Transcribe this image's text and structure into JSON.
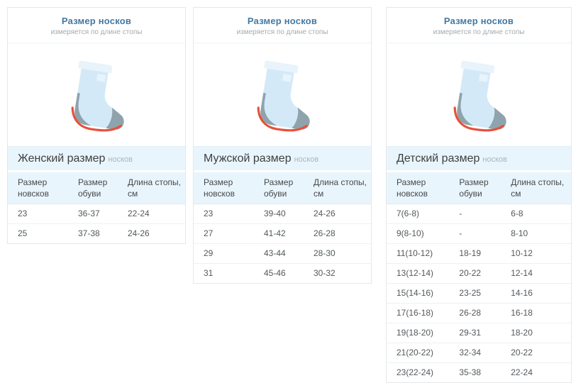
{
  "colors": {
    "accent_blue": "#4279a3",
    "light_blue_bg": "#e9f5fc",
    "sock_body": "#d3e9f7",
    "sock_cuff": "#e8f3fb",
    "sock_shade": "#8fa3ad",
    "sole_red": "#e8503a"
  },
  "cards": [
    {
      "title": "Размер носков",
      "subtitle": "измеряется по длине стопы",
      "section_title": "Женский размер",
      "section_suffix": "носков",
      "table": {
        "headers": [
          "Размер новсков",
          "Размер обуви",
          "Длина стопы, см"
        ],
        "rows": [
          [
            "23",
            "36-37",
            "22-24"
          ],
          [
            "25",
            "37-38",
            "24-26"
          ]
        ]
      }
    },
    {
      "title": "Размер носков",
      "subtitle": "измеряется по длине стопы",
      "section_title": "Мужской размер",
      "section_suffix": "носков",
      "table": {
        "headers": [
          "Размер новсков",
          "Размер обуви",
          "Длина стопы, см"
        ],
        "rows": [
          [
            "23",
            "39-40",
            "24-26"
          ],
          [
            "27",
            "41-42",
            "26-28"
          ],
          [
            "29",
            "43-44",
            "28-30"
          ],
          [
            "31",
            "45-46",
            "30-32"
          ]
        ]
      }
    },
    {
      "title": "Размер носков",
      "subtitle": "измеряется по длине стопы",
      "section_title": "Детский размер",
      "section_suffix": "носков",
      "table": {
        "headers": [
          "Размер новсков",
          "Размер обуви",
          "Длина стопы, см"
        ],
        "rows": [
          [
            "7(6-8)",
            "-",
            "6-8"
          ],
          [
            "9(8-10)",
            "-",
            "8-10"
          ],
          [
            "11(10-12)",
            "18-19",
            "10-12"
          ],
          [
            "13(12-14)",
            "20-22",
            "12-14"
          ],
          [
            "15(14-16)",
            "23-25",
            "14-16"
          ],
          [
            "17(16-18)",
            "26-28",
            "16-18"
          ],
          [
            "19(18-20)",
            "29-31",
            "18-20"
          ],
          [
            "21(20-22)",
            "32-34",
            "20-22"
          ],
          [
            "23(22-24)",
            "35-38",
            "22-24"
          ]
        ]
      }
    }
  ]
}
